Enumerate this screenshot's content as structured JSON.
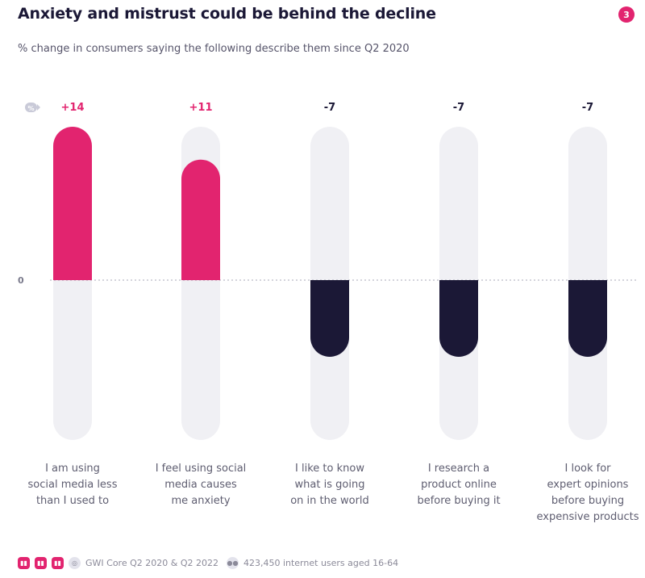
{
  "header": {
    "title": "Anxiety and mistrust could be behind the decline",
    "page_number": "3",
    "subtitle": "% change in consumers saying the following describe them since Q2 2020"
  },
  "footer": {
    "source": "GWI Core Q2 2020 & Q2 2022",
    "sample": "423,450 internet users aged 16-64"
  },
  "colors": {
    "positive": "#e2246f",
    "negative": "#1b1836",
    "track": "#f0f0f4",
    "accent": "#e2246f"
  },
  "chart_data": {
    "type": "bar",
    "unit_badge": "%",
    "zero_label": "0",
    "categories": [
      [
        "I am using",
        "social media less",
        "than I used to"
      ],
      [
        "I feel using social",
        "media causes",
        "me anxiety"
      ],
      [
        "I like to know",
        "what is going",
        "on in the world"
      ],
      [
        "I research a",
        "product online",
        "before buying it"
      ],
      [
        "I look for",
        "expert opinions",
        "before buying",
        "expensive products"
      ]
    ],
    "values": [
      14,
      11,
      -7,
      -7,
      -7
    ],
    "value_labels": [
      "+14",
      "+11",
      "-7",
      "-7",
      "-7"
    ],
    "ylim": [
      -14,
      14
    ],
    "grid": false
  }
}
